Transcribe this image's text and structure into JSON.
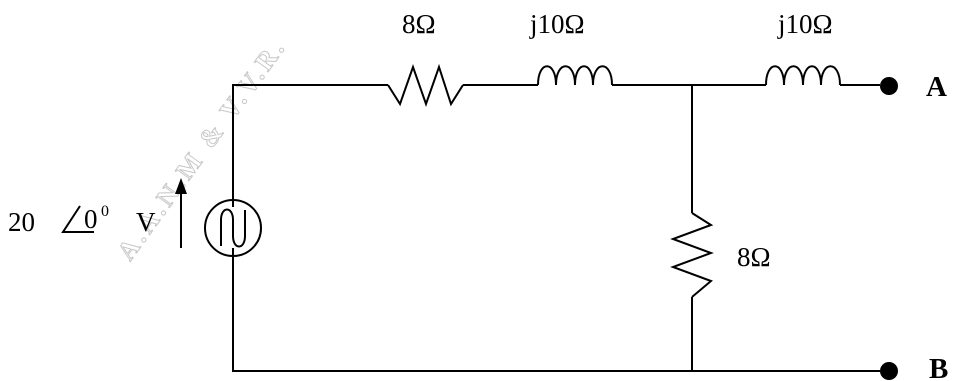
{
  "components": {
    "series_resistor": {
      "label": "8Ω"
    },
    "series_inductor_1": {
      "label": "j10Ω"
    },
    "series_inductor_2": {
      "label": "j10Ω"
    },
    "shunt_resistor": {
      "label": "8Ω"
    },
    "source": {
      "magnitude": "20",
      "angle": "0",
      "degree": "0",
      "unit": "V"
    }
  },
  "terminals": {
    "a": "A",
    "b": "B"
  },
  "watermark": "A.A.N.M & V.V.R."
}
